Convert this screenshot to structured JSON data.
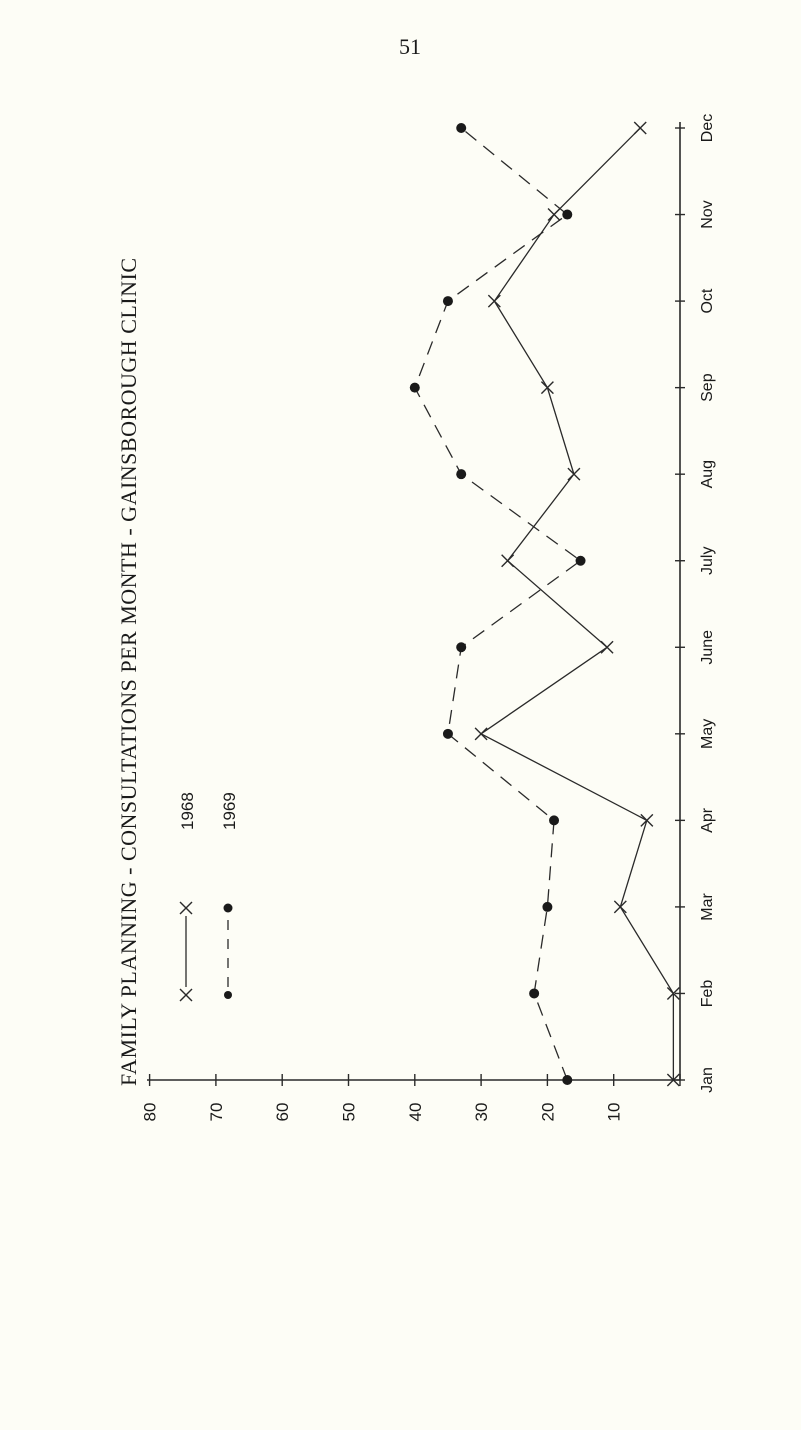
{
  "page": {
    "number": "51"
  },
  "chart_data": {
    "type": "line",
    "title": "FAMILY PLANNING - CONSULTATIONS PER MONTH - GAINSBOROUGH CLINIC",
    "xlabel": "",
    "ylabel": "",
    "categories": [
      "Jan",
      "Feb",
      "Mar",
      "Apr",
      "May",
      "June",
      "July",
      "Aug",
      "Sep",
      "Oct",
      "Nov",
      "Dec"
    ],
    "y_ticks": [
      "10",
      "20",
      "30",
      "40",
      "50",
      "60",
      "70",
      "80"
    ],
    "ylim": [
      0,
      80
    ],
    "orientation": "rotated-90-counterclockwise",
    "grid": false,
    "legend_position": "upper-left",
    "series": [
      {
        "name": "1968",
        "marker": "x",
        "line": "solid",
        "values": [
          1,
          1,
          9,
          5,
          30,
          11,
          26,
          16,
          20,
          28,
          19,
          6
        ]
      },
      {
        "name": "1969",
        "marker": "dot",
        "line": "dashed",
        "values": [
          17,
          22,
          20,
          19,
          35,
          33,
          15,
          33,
          40,
          35,
          17,
          33
        ]
      }
    ],
    "legend": [
      {
        "label": "1968",
        "series": 0
      },
      {
        "label": "1969",
        "series": 1
      }
    ]
  }
}
